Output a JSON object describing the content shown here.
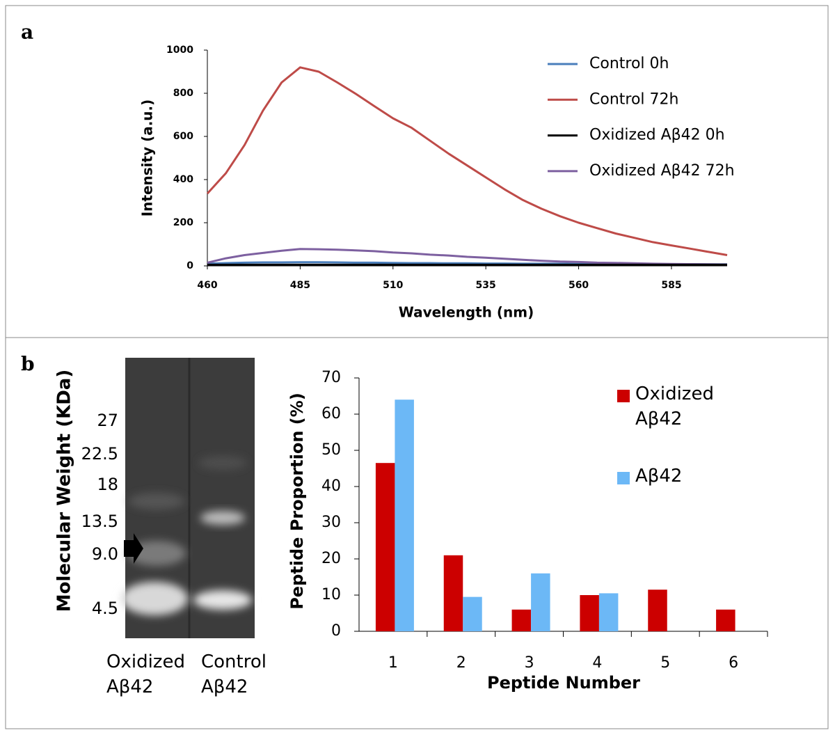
{
  "panel_labels": [
    "a",
    "b"
  ],
  "chart_data": [
    {
      "type": "line",
      "x_label": "Wavelength (nm)",
      "y_label": "Intensity (a.u.)",
      "x": [
        460,
        465,
        470,
        475,
        480,
        485,
        490,
        495,
        500,
        505,
        510,
        515,
        520,
        525,
        530,
        535,
        540,
        545,
        550,
        555,
        560,
        565,
        570,
        575,
        580,
        585,
        590,
        595,
        600
      ],
      "xlim": [
        460,
        600
      ],
      "xticks": [
        460,
        485,
        510,
        535,
        560,
        585
      ],
      "ylim": [
        0,
        1000
      ],
      "yticks": [
        0,
        200,
        400,
        600,
        800,
        1000
      ],
      "series": [
        {
          "name": "Control 0h",
          "color": "#4a7ebb",
          "values": [
            10,
            13,
            15,
            16,
            16,
            17,
            17,
            16,
            15,
            15,
            14,
            13,
            13,
            12,
            12,
            11,
            11,
            10,
            10,
            10,
            9,
            9,
            9,
            8,
            8,
            8,
            8,
            7,
            7
          ]
        },
        {
          "name": "Control 72h",
          "color": "#be4b48",
          "values": [
            335,
            430,
            560,
            720,
            850,
            920,
            900,
            850,
            797,
            740,
            684,
            640,
            580,
            520,
            465,
            410,
            355,
            305,
            265,
            230,
            200,
            175,
            150,
            130,
            110,
            95,
            80,
            65,
            50
          ]
        },
        {
          "name": "Oxidized Aβ42 0h",
          "color": "#000000",
          "values": [
            5,
            5,
            5,
            5,
            5,
            5,
            5,
            5,
            5,
            5,
            5,
            5,
            5,
            5,
            5,
            5,
            5,
            5,
            5,
            5,
            5,
            5,
            5,
            5,
            5,
            5,
            5,
            5,
            5
          ]
        },
        {
          "name": "Oxidized Aβ42 72h",
          "color": "#7d60a0",
          "values": [
            15,
            35,
            50,
            60,
            70,
            78,
            77,
            75,
            72,
            68,
            62,
            58,
            52,
            48,
            42,
            38,
            33,
            28,
            24,
            20,
            18,
            15,
            14,
            12,
            10,
            9,
            8,
            7,
            6
          ]
        }
      ]
    },
    {
      "type": "bar",
      "x_label": "Peptide Number",
      "y_label": "Peptide Proportion (%)",
      "categories": [
        "1",
        "2",
        "3",
        "4",
        "5",
        "6"
      ],
      "ylim": [
        0,
        70
      ],
      "yticks": [
        0,
        10,
        20,
        30,
        40,
        50,
        60,
        70
      ],
      "series": [
        {
          "name": "Oxidized Aβ42",
          "color": "#cc0000",
          "values": [
            46.5,
            21,
            6,
            10,
            11.5,
            6
          ]
        },
        {
          "name": "Aβ42",
          "color": "#6cb8f6",
          "values": [
            64,
            9.5,
            16,
            10.5,
            null,
            null
          ]
        }
      ]
    }
  ],
  "gel": {
    "y_label": "Molecular Weight (KDa)",
    "markers": [
      "27",
      "22.5",
      "18",
      "13.5",
      "9.0",
      "4.5"
    ],
    "lanes": [
      "Oxidized Aβ42",
      "Control Aβ42"
    ]
  }
}
